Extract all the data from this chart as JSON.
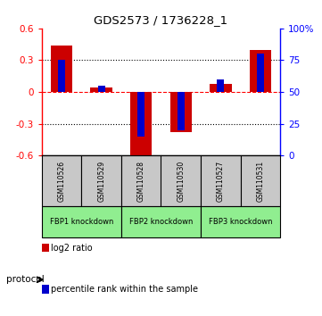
{
  "title": "GDS2573 / 1736228_1",
  "samples": [
    "GSM110526",
    "GSM110529",
    "GSM110528",
    "GSM110530",
    "GSM110527",
    "GSM110531"
  ],
  "log2_ratio": [
    0.44,
    0.04,
    -0.65,
    -0.38,
    0.08,
    0.4
  ],
  "percentile_rank": [
    75,
    55,
    15,
    20,
    60,
    80
  ],
  "ylim_left": [
    -0.6,
    0.6
  ],
  "ylim_right": [
    0,
    100
  ],
  "yticks_left": [
    -0.6,
    -0.3,
    0.0,
    0.3,
    0.6
  ],
  "yticks_right": [
    0,
    25,
    50,
    75,
    100
  ],
  "yticklabels_left": [
    "-0.6",
    "-0.3",
    "0",
    "0.3",
    "0.6"
  ],
  "yticklabels_right": [
    "0",
    "25",
    "50",
    "75",
    "100%"
  ],
  "groups": [
    {
      "label": "FBP1 knockdown",
      "start": 0,
      "end": 1
    },
    {
      "label": "FBP2 knockdown",
      "start": 2,
      "end": 3
    },
    {
      "label": "FBP3 knockdown",
      "start": 4,
      "end": 5
    }
  ],
  "red_bar_color": "#CC0000",
  "blue_bar_color": "#0000CC",
  "sample_box_color": "#C8C8C8",
  "green_color": "#90EE90",
  "dotted_line_color": "#000000",
  "zero_line_color": "#FF0000",
  "bg_color": "#FFFFFF",
  "legend_red_label": "log2 ratio",
  "legend_blue_label": "percentile rank within the sample",
  "protocol_label": "protocol"
}
